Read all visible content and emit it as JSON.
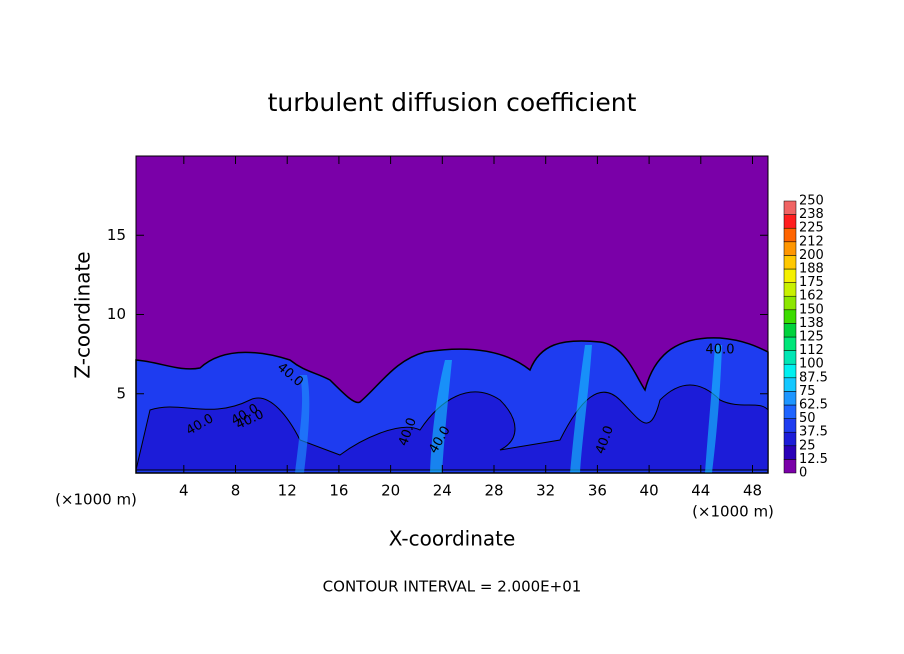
{
  "chart_data": {
    "type": "contour",
    "title": "turbulent diffusion coefficient",
    "x_label": "X-coordinate",
    "y_label": "Z-coordinate",
    "x_unit": "(×1000 m)",
    "y_unit": "(×1000 m)",
    "footer": "CONTOUR INTERVAL = 2.000E+01",
    "contour_labels": [
      "40.0",
      "40.0",
      "40.0",
      "40.0",
      "40.0",
      "40.0",
      "40.0",
      "40.0"
    ],
    "xlim": [
      0.3,
      49.2
    ],
    "xticks": [
      4,
      8,
      12,
      16,
      20,
      24,
      28,
      32,
      36,
      40,
      44,
      48
    ],
    "ylim": [
      0,
      20
    ],
    "yticks": [
      5,
      10,
      15
    ],
    "colorbar": {
      "levels": [
        0,
        12.5,
        25,
        37.5,
        50,
        62.5,
        75,
        87.5,
        100,
        112,
        125,
        138,
        150,
        162,
        175,
        188,
        200,
        212,
        225,
        238,
        250
      ],
      "colors": [
        "#7a00a8",
        "#2a00b8",
        "#1c1cd8",
        "#1e3cf0",
        "#1e64ff",
        "#1e96ff",
        "#14c8ff",
        "#00f0f0",
        "#00e6b4",
        "#00e678",
        "#00d23c",
        "#3cdc00",
        "#8ce600",
        "#c8f000",
        "#f5f000",
        "#ffc800",
        "#ff9600",
        "#ff6400",
        "#ff1e1e",
        "#f06464"
      ]
    }
  }
}
